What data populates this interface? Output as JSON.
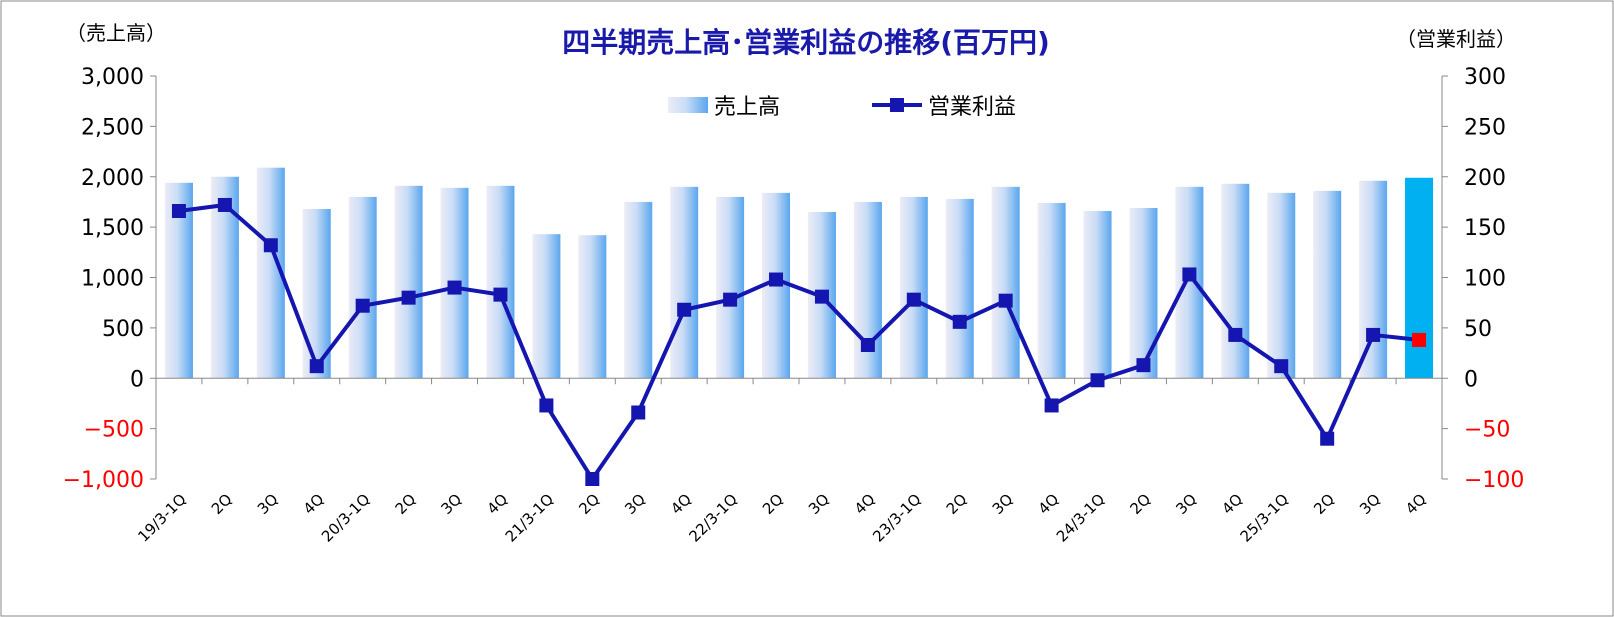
{
  "chart_data": {
    "type": "bar+line",
    "title": "四半期売上高･営業利益の推移(百万円)",
    "left_axis_label": "（売上高）",
    "right_axis_label": "（営業利益）",
    "categories": [
      "19/3-1Q",
      "2Q",
      "3Q",
      "4Q",
      "20/3-1Q",
      "2Q",
      "3Q",
      "4Q",
      "21/3-1Q",
      "2Q",
      "3Q",
      "4Q",
      "22/3-1Q",
      "2Q",
      "3Q",
      "4Q",
      "23/3-1Q",
      "2Q",
      "3Q",
      "4Q",
      "24/3-1Q",
      "2Q",
      "3Q",
      "4Q",
      "25/3-1Q",
      "2Q",
      "3Q",
      "4Q"
    ],
    "series": [
      {
        "name": "売上高",
        "type": "bar",
        "axis": "left",
        "values": [
          1940,
          2000,
          2090,
          1680,
          1800,
          1910,
          1890,
          1910,
          1430,
          1420,
          1750,
          1900,
          1800,
          1840,
          1650,
          1750,
          1800,
          1780,
          1900,
          1740,
          1660,
          1690,
          1900,
          1930,
          1840,
          1860,
          1960,
          1990
        ]
      },
      {
        "name": "営業利益",
        "type": "line",
        "axis": "right",
        "values": [
          166,
          172,
          132,
          12,
          72,
          80,
          90,
          83,
          -27,
          -100,
          -34,
          68,
          78,
          98,
          81,
          33,
          78,
          56,
          77,
          -27,
          -2,
          13,
          103,
          43,
          12,
          -60,
          43,
          38
        ]
      }
    ],
    "left_axis": {
      "min": -1000,
      "max": 3000,
      "ticks": [
        "3,000",
        "2,500",
        "2,000",
        "1,500",
        "1,000",
        "500",
        "0",
        "−500",
        "−1,000"
      ]
    },
    "right_axis": {
      "min": -100,
      "max": 300,
      "ticks": [
        "300",
        "250",
        "200",
        "150",
        "100",
        "50",
        "0",
        "−50",
        "−100"
      ]
    },
    "legend_position": "top-center",
    "colors": {
      "bar_light": "#e4e4f4",
      "bar_dark": "#5aa6ee",
      "bar_highlight": "#00b0f0",
      "line": "#1515b0",
      "last_marker": "#ff0000",
      "negative_tick": "#ff0000",
      "title": "#1a1aaa"
    }
  }
}
